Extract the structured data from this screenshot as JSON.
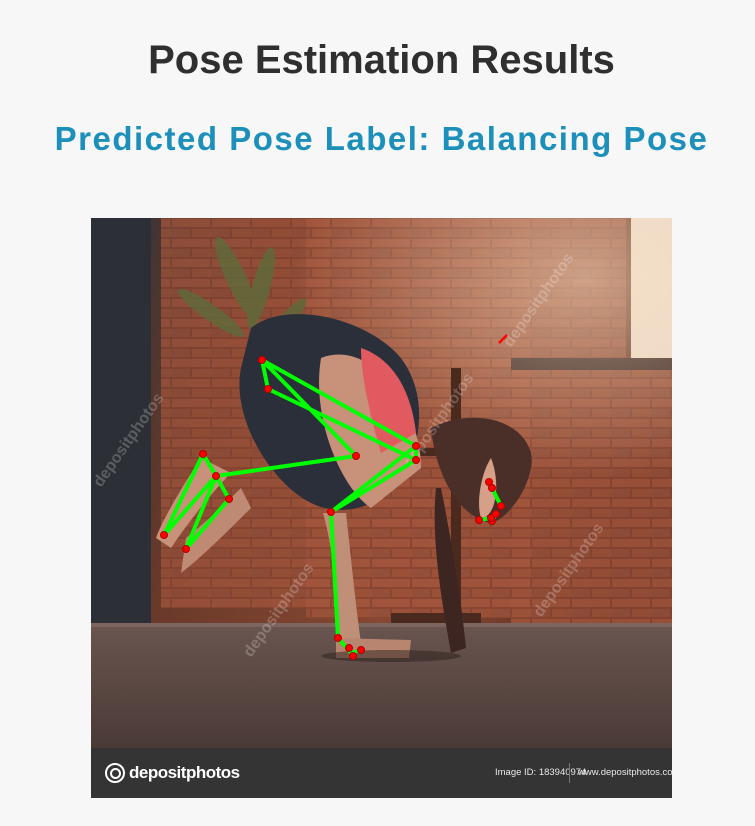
{
  "page": {
    "title": "Pose Estimation Results",
    "predicted_label": "Predicted Pose Label: Balancing Pose"
  },
  "image": {
    "watermark_text": "depositphotos",
    "footer": {
      "brand": "depositphotos",
      "image_id": "Image ID: 183940974",
      "site": "www.depositphotos.com"
    }
  },
  "colors": {
    "title": "#2f2f2f",
    "label": "#1c8fbb",
    "skeleton_line": "#00ff00",
    "keypoint": "#ff0000"
  },
  "icons": {
    "brand_logo": "depositphotos-logo-icon"
  }
}
